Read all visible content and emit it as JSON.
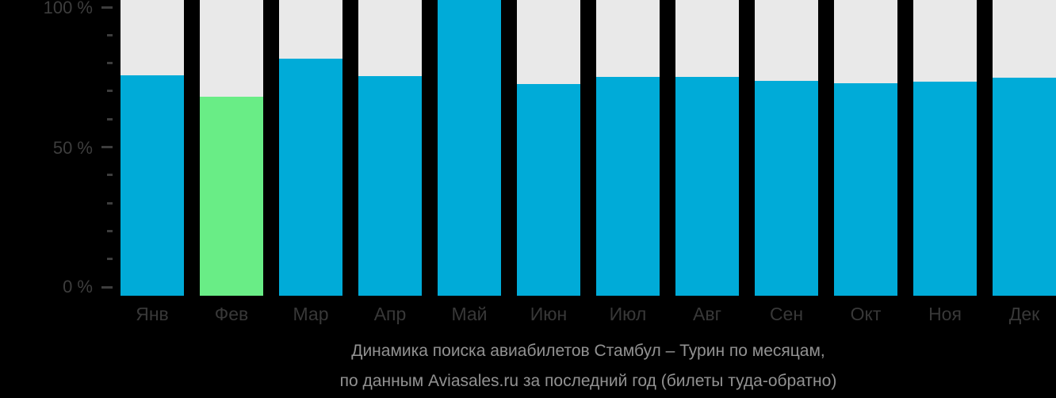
{
  "chart_data": {
    "type": "bar",
    "categories": [
      "Янв",
      "Фев",
      "Мар",
      "Апр",
      "Май",
      "Июн",
      "Июл",
      "Авг",
      "Сен",
      "Окт",
      "Ноя",
      "Дек"
    ],
    "values": [
      74.5,
      67.3,
      80.2,
      74.3,
      100,
      71.5,
      74.0,
      74.0,
      72.7,
      71.8,
      72.4,
      73.7
    ],
    "unit": "%",
    "highlight_index": 1,
    "ylim": [
      0,
      100
    ],
    "y_tick_labels": [
      "100 %",
      "50 %",
      "0 %"
    ],
    "minor_tick_step_percent": 10,
    "grid": false,
    "legend": "none",
    "title": "Динамика поиска авиабилетов Стамбул – Турин по месяцам,",
    "subtitle": "по данным Aviasales.ru за последний год (билеты туда-обратно)",
    "colors": {
      "background": "#000000",
      "bar": "#00abd8",
      "highlight_bar": "#69ed86",
      "track": "#e9e9e9",
      "axis_text": "#3d3d3d",
      "month_text": "#383838",
      "caption_text": "#929292"
    }
  }
}
